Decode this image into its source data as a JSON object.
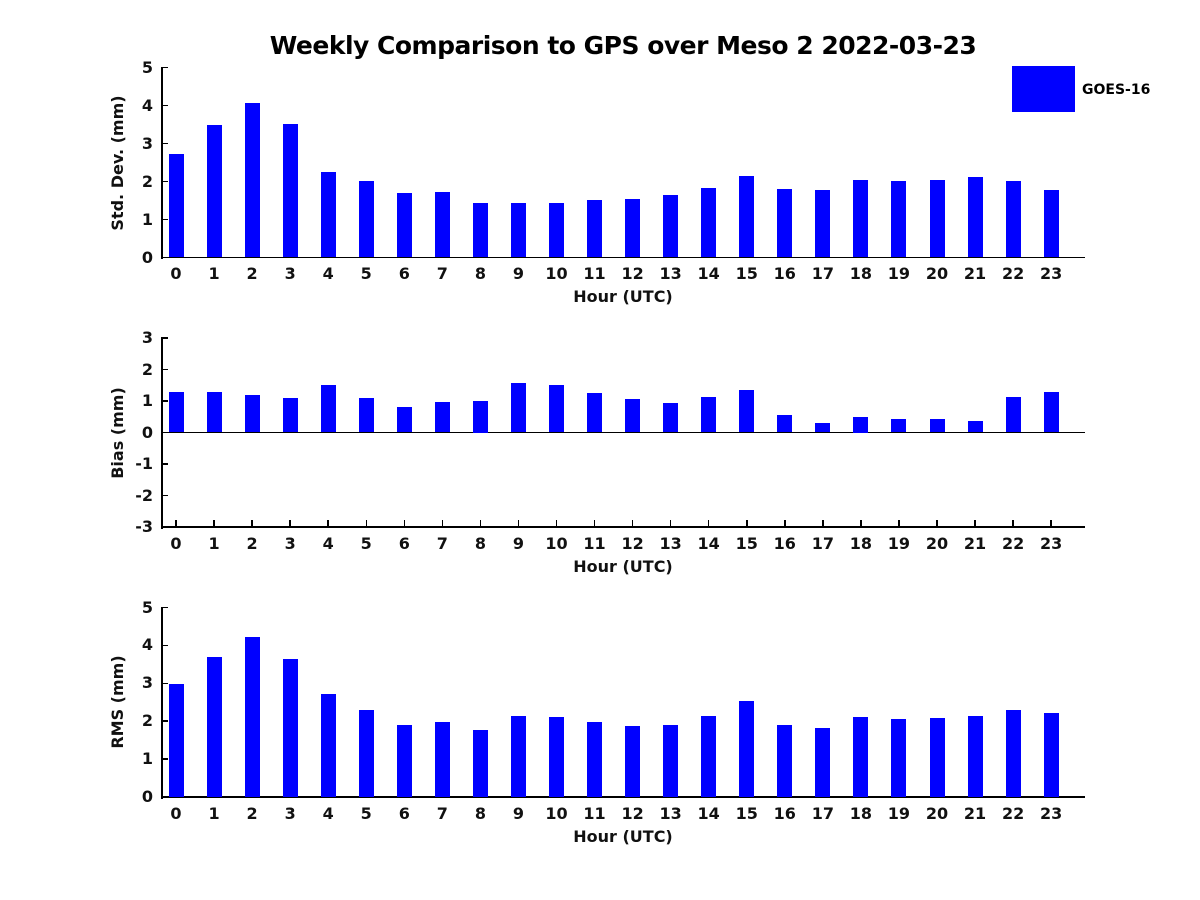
{
  "page": {
    "title": "Weekly Comparison to GPS over Meso 2 2022-03-23",
    "background": "#ffffff"
  },
  "legend": {
    "label": "GOES-16",
    "swatch_color": "#0000ff",
    "position": "top-right"
  },
  "chart_data": [
    {
      "type": "bar",
      "id": "std-dev-panel",
      "title": "",
      "ylabel": "Std. Dev. (mm)",
      "xlabel": "Hour (UTC)",
      "ylim": [
        0,
        5
      ],
      "yticks": [
        0,
        1,
        2,
        3,
        4,
        5
      ],
      "grid": false,
      "legend_entry": "GOES-16",
      "bar_color": "#0000ff",
      "categories": [
        "0",
        "1",
        "2",
        "3",
        "4",
        "5",
        "6",
        "7",
        "8",
        "9",
        "10",
        "11",
        "12",
        "13",
        "14",
        "15",
        "16",
        "17",
        "18",
        "19",
        "20",
        "21",
        "22",
        "23"
      ],
      "values": [
        2.72,
        3.48,
        4.06,
        3.52,
        2.26,
        2.02,
        1.7,
        1.73,
        1.43,
        1.43,
        1.44,
        1.52,
        1.55,
        1.64,
        1.82,
        2.14,
        1.8,
        1.78,
        2.03,
        2.01,
        2.03,
        2.12,
        2.01,
        1.78
      ]
    },
    {
      "type": "bar",
      "id": "bias-panel",
      "title": "",
      "ylabel": "Bias (mm)",
      "xlabel": "Hour (UTC)",
      "ylim": [
        -3,
        3
      ],
      "yticks": [
        -3,
        -2,
        -1,
        0,
        1,
        2,
        3
      ],
      "grid": false,
      "legend_entry": "GOES-16",
      "bar_color": "#0000ff",
      "categories": [
        "0",
        "1",
        "2",
        "3",
        "4",
        "5",
        "6",
        "7",
        "8",
        "9",
        "10",
        "11",
        "12",
        "13",
        "14",
        "15",
        "16",
        "17",
        "18",
        "19",
        "20",
        "21",
        "22",
        "23"
      ],
      "values": [
        1.28,
        1.28,
        1.2,
        1.1,
        1.51,
        1.09,
        0.81,
        0.96,
        1.0,
        1.56,
        1.52,
        1.26,
        1.06,
        0.94,
        1.13,
        1.35,
        0.55,
        0.3,
        0.5,
        0.43,
        0.44,
        0.36,
        1.14,
        1.28
      ]
    },
    {
      "type": "bar",
      "id": "rms-panel",
      "title": "",
      "ylabel": "RMS (mm)",
      "xlabel": "Hour (UTC)",
      "ylim": [
        0,
        5
      ],
      "yticks": [
        0,
        1,
        2,
        3,
        4,
        5
      ],
      "grid": false,
      "legend_entry": "GOES-16",
      "bar_color": "#0000ff",
      "categories": [
        "0",
        "1",
        "2",
        "3",
        "4",
        "5",
        "6",
        "7",
        "8",
        "9",
        "10",
        "11",
        "12",
        "13",
        "14",
        "15",
        "16",
        "17",
        "18",
        "19",
        "20",
        "21",
        "22",
        "23"
      ],
      "values": [
        2.98,
        3.7,
        4.22,
        3.65,
        2.71,
        2.29,
        1.9,
        1.98,
        1.77,
        2.13,
        2.11,
        1.98,
        1.87,
        1.9,
        2.13,
        2.52,
        1.9,
        1.83,
        2.11,
        2.05,
        2.08,
        2.13,
        2.29,
        2.22
      ]
    }
  ]
}
